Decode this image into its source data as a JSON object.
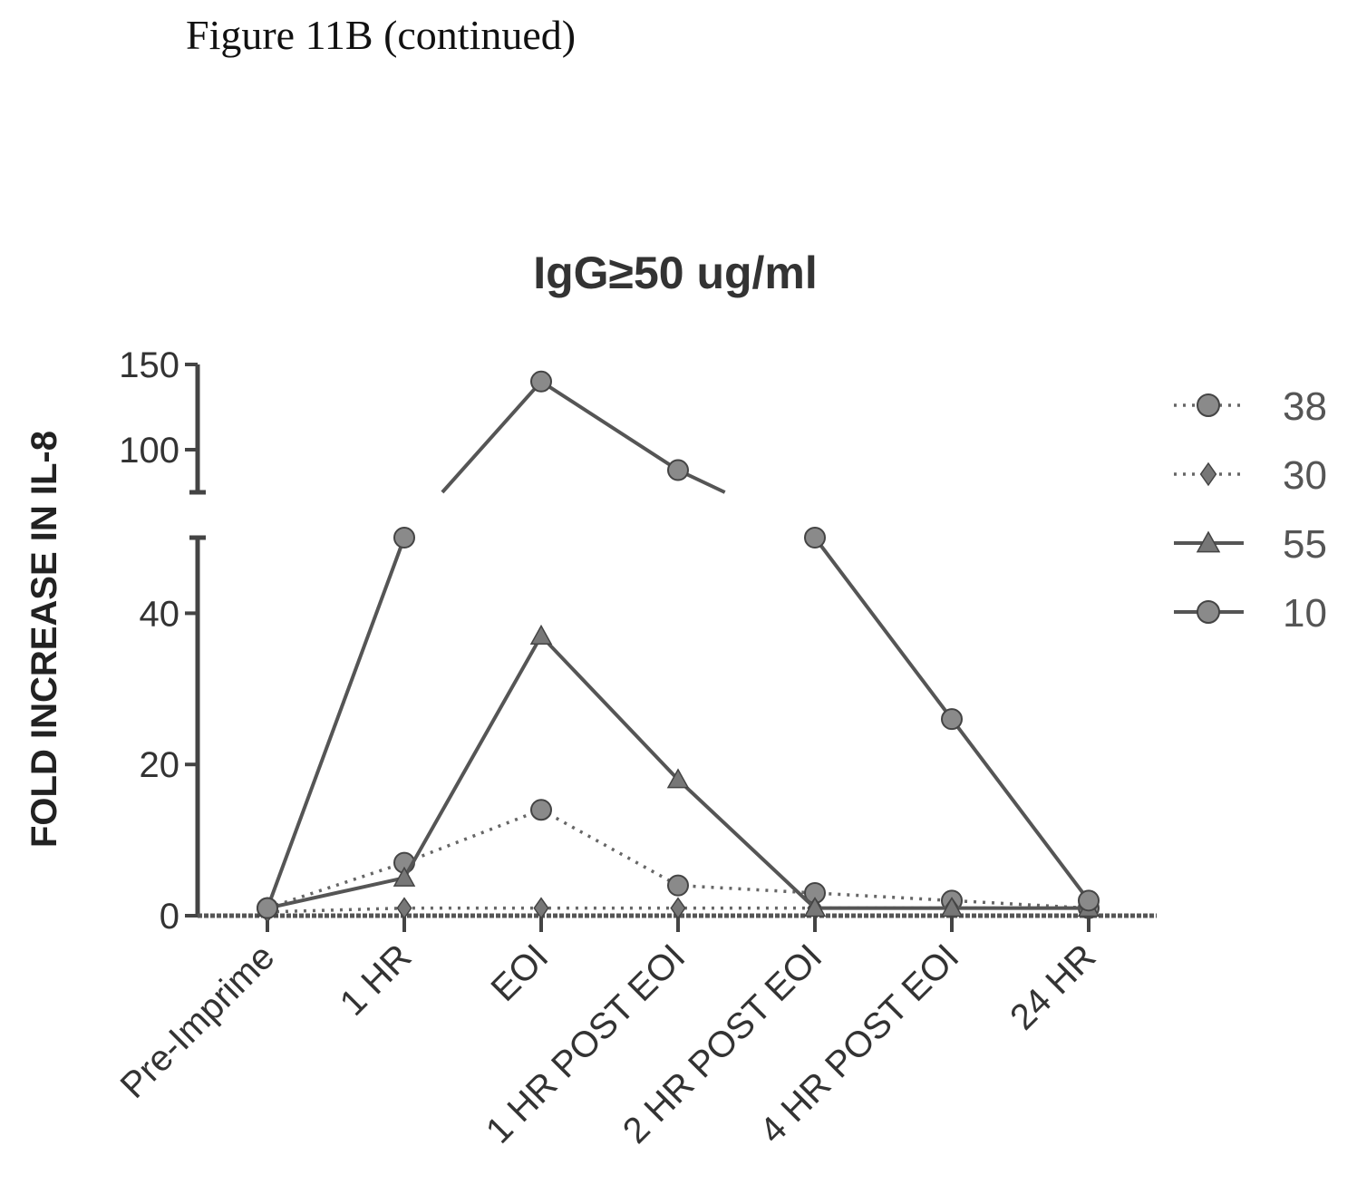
{
  "caption": "Figure 11B (continued)",
  "chart_data": {
    "type": "line",
    "title": "IgG≥50 ug/ml",
    "xlabel": "",
    "ylabel": "FOLD INCREASE IN IL-8",
    "categories": [
      "Pre-Imprime",
      "1 HR",
      "EOI",
      "1 HR POST EOI",
      "2 HR POST EOI",
      "4 HR POST EOI",
      "24 HR"
    ],
    "broken_y_axis": true,
    "ylim_lower": [
      0,
      50
    ],
    "ylim_upper": [
      75,
      150
    ],
    "yticks_lower": [
      0,
      20,
      40
    ],
    "yticks_upper": [
      100,
      150
    ],
    "ytick_labels": [
      "0",
      "20",
      "40",
      "100",
      "150"
    ],
    "legend_position": "right",
    "series": [
      {
        "name": "38",
        "style": "dotted",
        "marker": "circle",
        "values": [
          1,
          7,
          14,
          4,
          3,
          2,
          1
        ]
      },
      {
        "name": "30",
        "style": "dotted",
        "marker": "diamond",
        "values": [
          0.5,
          1,
          1,
          1,
          1,
          1,
          1
        ]
      },
      {
        "name": "55",
        "style": "solid",
        "marker": "triangle",
        "values": [
          1,
          5,
          37,
          18,
          1,
          1,
          1
        ]
      },
      {
        "name": "10",
        "style": "solid",
        "marker": "circle",
        "values": [
          1,
          50,
          140,
          88,
          50,
          26,
          2
        ]
      }
    ]
  }
}
